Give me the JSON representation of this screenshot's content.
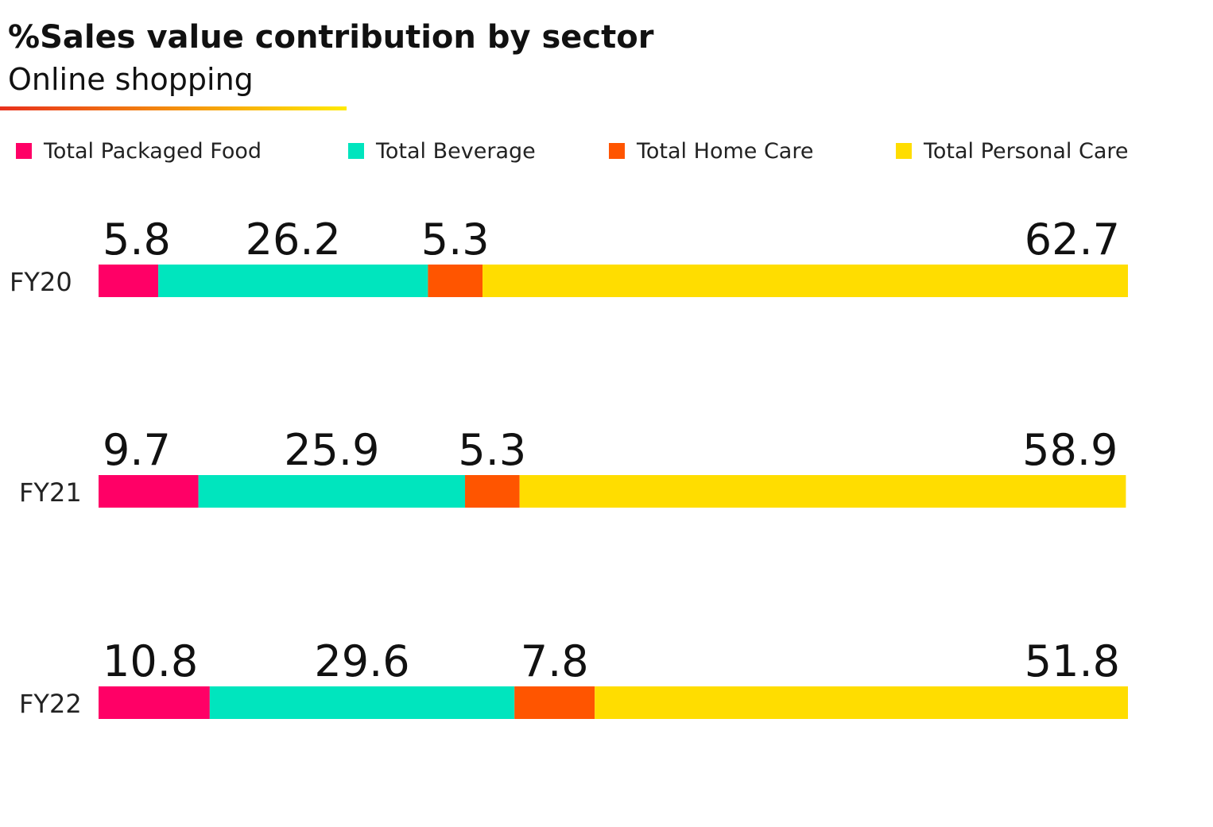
{
  "title": "%Sales value contribution by sector",
  "subtitle": "Online shopping",
  "chart_data": {
    "type": "bar",
    "orientation": "horizontal",
    "stacked": true,
    "categories": [
      "FY20",
      "FY21",
      "FY22"
    ],
    "series": [
      {
        "name": "Total Packaged Food",
        "color": "#FF0066",
        "values": [
          5.8,
          9.7,
          10.8
        ]
      },
      {
        "name": "Total Beverage",
        "color": "#00E5BE",
        "values": [
          26.2,
          25.9,
          29.6
        ]
      },
      {
        "name": "Total Home Care",
        "color": "#FF5500",
        "values": [
          5.3,
          5.3,
          7.8
        ]
      },
      {
        "name": "Total Personal Care",
        "color": "#FFDD00",
        "values": [
          62.7,
          58.9,
          51.8
        ]
      }
    ],
    "xlim": [
      0,
      100
    ],
    "grid": false,
    "legend_position": "top"
  },
  "colors": {
    "underline_start": "#E8301C",
    "underline_end": "#FFEA00"
  }
}
